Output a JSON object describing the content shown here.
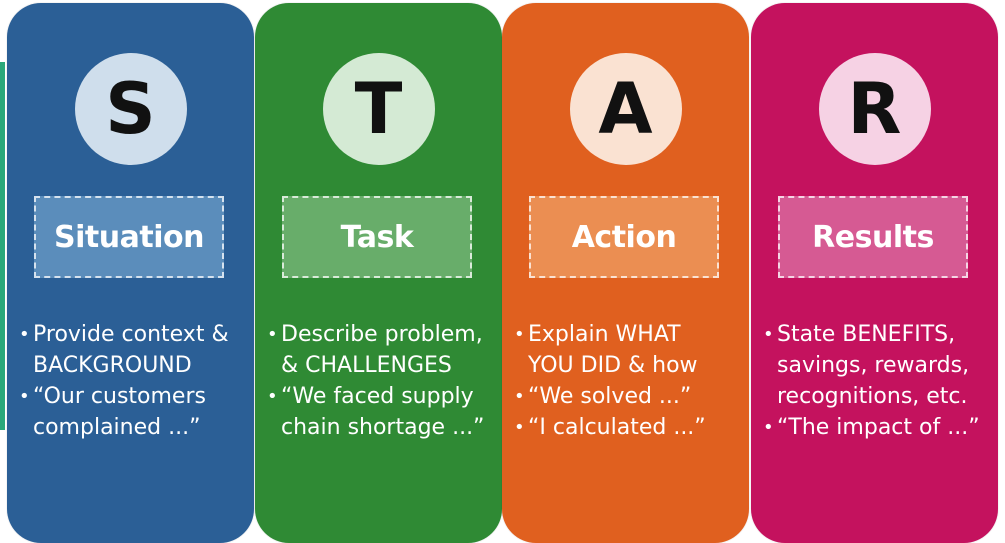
{
  "panels": [
    {
      "letter": "S",
      "title": "Situation",
      "bullets": [
        "Provide context &\nBACKGROUND",
        "“Our customers\ncomplained ...”"
      ]
    },
    {
      "letter": "T",
      "title": "Task",
      "bullets": [
        "Describe problem,\n& CHALLENGES",
        "“We faced supply\nchain shortage ...”"
      ]
    },
    {
      "letter": "A",
      "title": "Action",
      "bullets": [
        "Explain WHAT\nYOU DID & how",
        "“We solved ...”",
        "“I calculated ...”"
      ]
    },
    {
      "letter": "R",
      "title": "Results",
      "bullets": [
        "State BENEFITS,\nsavings, rewards,\nrecognitions, etc.",
        "“The impact of ...”"
      ]
    }
  ],
  "colors": {
    "situation": "#2b5f96",
    "task": "#2f8a34",
    "action": "#e0601f",
    "results": "#c4125e"
  },
  "bullet_glyph": "•"
}
